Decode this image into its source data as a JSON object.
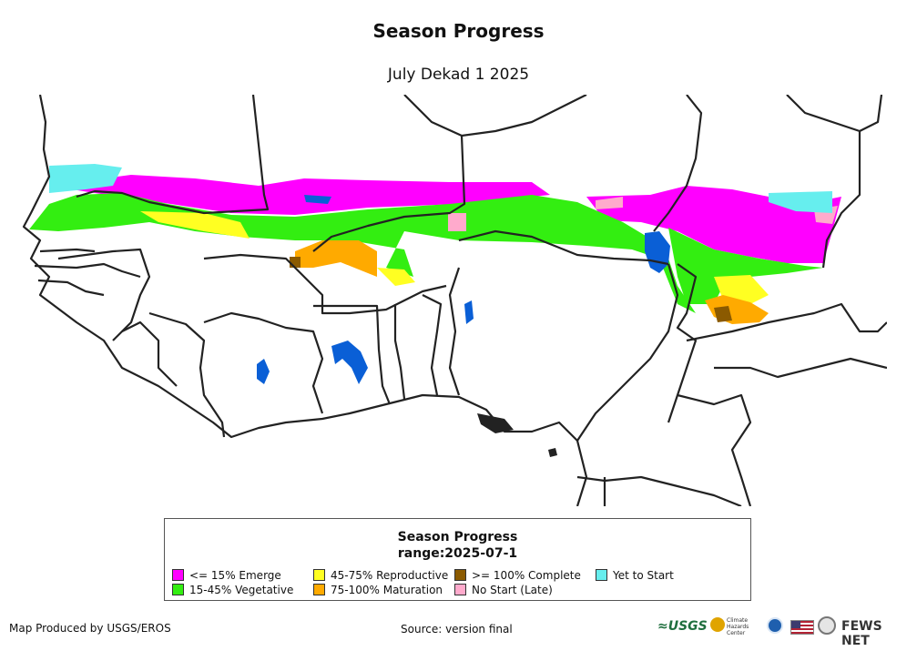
{
  "title": "Season Progress",
  "subtitle": "July Dekad 1 2025",
  "legend": {
    "title": "Season Progress",
    "range": "range:2025-07-1",
    "items": [
      {
        "label": "<= 15% Emerge",
        "color": "#ff00ff"
      },
      {
        "label": "15-45% Vegetative",
        "color": "#33ee11"
      },
      {
        "label": "45-75% Reproductive",
        "color": "#ffff22"
      },
      {
        "label": "75-100% Maturation",
        "color": "#ffaa00"
      },
      {
        "label": ">= 100% Complete",
        "color": "#8b5a00"
      },
      {
        "label": "No Start (Late)",
        "color": "#ffaacc"
      },
      {
        "label": "Yet to Start",
        "color": "#66eeee"
      }
    ]
  },
  "footer": {
    "producer": "Map Produced by USGS/EROS",
    "source": "Source: version final"
  },
  "logos": {
    "usgs": "≈USGS",
    "chc": "Climate Hazards Center",
    "fews": "FEWS NET"
  },
  "colors": {
    "water": "#0a5fd6",
    "border": "#222222"
  }
}
